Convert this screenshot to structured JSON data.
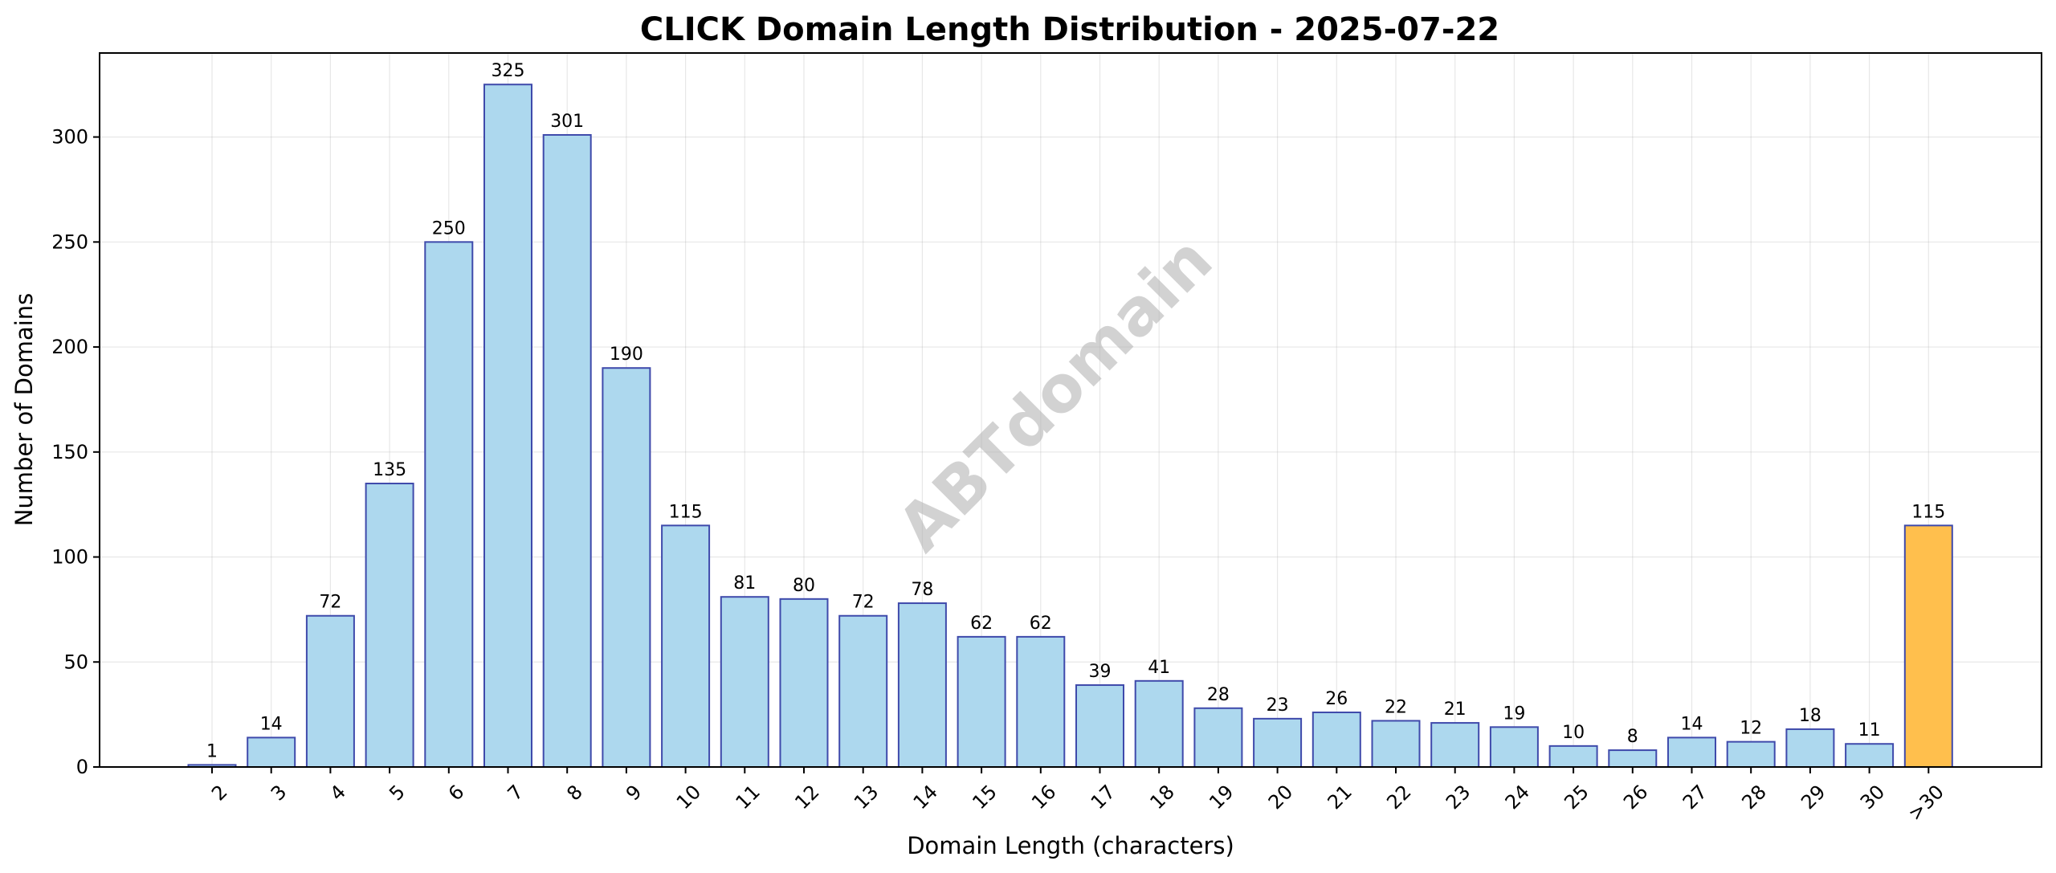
{
  "chart_data": {
    "type": "bar",
    "title": "CLICK Domain Length Distribution - 2025-07-22",
    "xlabel": "Domain Length (characters)",
    "ylabel": "Number of Domains",
    "categories": [
      "2",
      "3",
      "4",
      "5",
      "6",
      "7",
      "8",
      "9",
      "10",
      "11",
      "12",
      "13",
      "14",
      "15",
      "16",
      "17",
      "18",
      "19",
      "20",
      "21",
      "22",
      "23",
      "24",
      "25",
      "26",
      "27",
      "28",
      "29",
      "30",
      ">30"
    ],
    "values": [
      1,
      14,
      72,
      135,
      250,
      325,
      301,
      190,
      115,
      81,
      80,
      72,
      78,
      62,
      62,
      39,
      41,
      28,
      23,
      26,
      22,
      21,
      19,
      10,
      8,
      14,
      12,
      18,
      11,
      115
    ],
    "ylim": [
      0,
      340
    ],
    "yticks": [
      0,
      50,
      100,
      150,
      200,
      250,
      300
    ],
    "grid": true,
    "bar_color": "#add8ee",
    "highlight_color": "#ffbf4d",
    "edge_color": "#3f4aab",
    "highlight_categories": [
      ">30"
    ],
    "data_labels": true,
    "watermark": "ABTdomain"
  }
}
